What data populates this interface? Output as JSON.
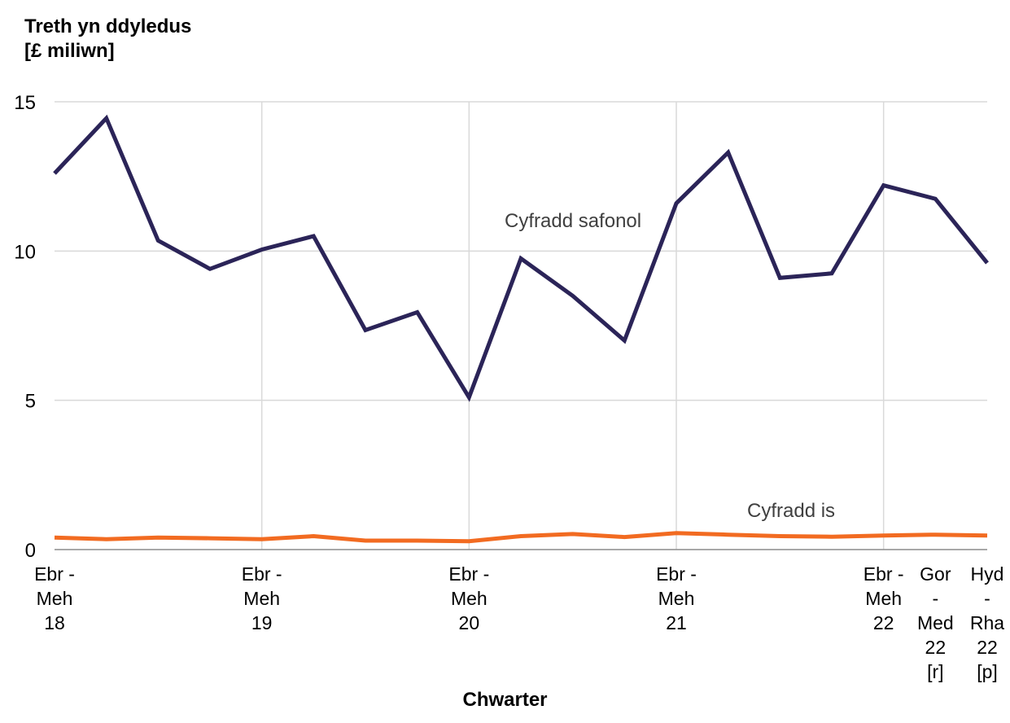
{
  "chart_data": {
    "type": "line",
    "title_lines": [
      "Treth yn ddyledus",
      "[£ miliwn]"
    ],
    "xlabel": "Chwarter",
    "ylim": [
      0,
      15
    ],
    "yticks": [
      0,
      5,
      10,
      15
    ],
    "grid": true,
    "x_tick_labels": [
      {
        "index": 0,
        "lines": [
          "Ebr -",
          "Meh",
          "18"
        ]
      },
      {
        "index": 4,
        "lines": [
          "Ebr -",
          "Meh",
          "19"
        ]
      },
      {
        "index": 8,
        "lines": [
          "Ebr -",
          "Meh",
          "20"
        ]
      },
      {
        "index": 12,
        "lines": [
          "Ebr -",
          "Meh",
          "21"
        ]
      },
      {
        "index": 16,
        "lines": [
          "Ebr -",
          "Meh",
          "22"
        ]
      },
      {
        "index": 17,
        "lines": [
          "Gor",
          "-",
          "Med",
          "22",
          "[r]"
        ]
      },
      {
        "index": 18,
        "lines": [
          "Hyd",
          "-",
          "Rha",
          "22",
          "[p]"
        ]
      }
    ],
    "series": [
      {
        "name": "Cyfradd safonol",
        "color": "#2b2458",
        "values": [
          12.6,
          14.45,
          10.35,
          9.4,
          10.05,
          10.5,
          7.35,
          7.95,
          5.1,
          9.75,
          8.5,
          7.0,
          11.6,
          13.3,
          9.1,
          9.25,
          12.2,
          11.75,
          9.6
        ]
      },
      {
        "name": "Cyfradd is",
        "color": "#f26b21",
        "values": [
          0.4,
          0.35,
          0.4,
          0.38,
          0.35,
          0.45,
          0.3,
          0.3,
          0.28,
          0.45,
          0.52,
          0.42,
          0.55,
          0.5,
          0.45,
          0.43,
          0.47,
          0.5,
          0.47
        ]
      }
    ]
  }
}
